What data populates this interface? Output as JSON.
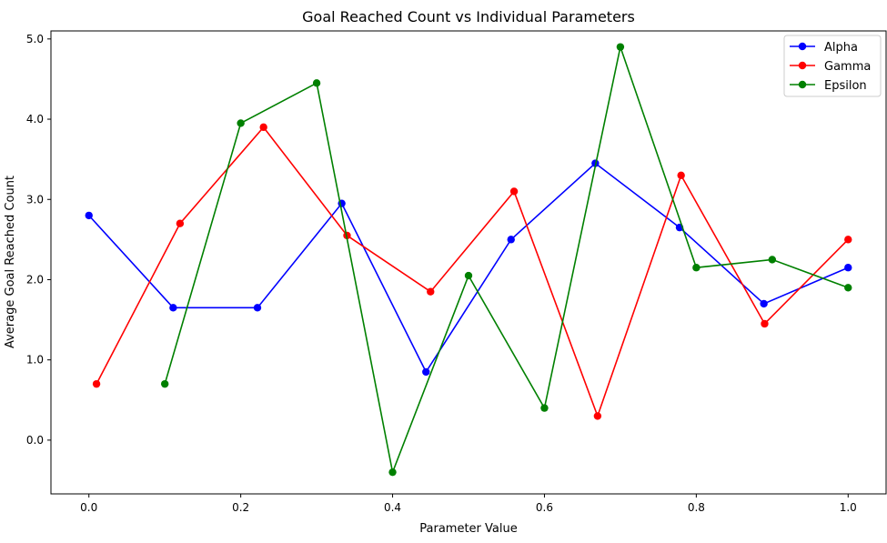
{
  "chart_data": {
    "type": "line",
    "title": "Goal Reached Count vs Individual Parameters",
    "xlabel": "Parameter Value",
    "ylabel": "Average Goal Reached Count",
    "xlim": [
      -0.05,
      1.05
    ],
    "ylim": [
      -0.67,
      5.1
    ],
    "xticks": [
      0.0,
      0.2,
      0.4,
      0.6,
      0.8,
      1.0
    ],
    "xtick_labels": [
      "0.0",
      "0.2",
      "0.4",
      "0.6",
      "0.8",
      "1.0"
    ],
    "yticks": [
      0.0,
      1.0,
      2.0,
      3.0,
      4.0,
      5.0
    ],
    "ytick_labels": [
      "0.0",
      "1.0",
      "2.0",
      "3.0",
      "4.0",
      "5.0"
    ],
    "grid": false,
    "legend_position": "top-right",
    "series": [
      {
        "name": "Alpha",
        "color": "#0000ff",
        "x": [
          0.0,
          0.111,
          0.222,
          0.333,
          0.444,
          0.556,
          0.667,
          0.778,
          0.889,
          1.0
        ],
        "y": [
          2.8,
          1.65,
          1.65,
          2.95,
          0.85,
          2.5,
          3.45,
          2.65,
          1.7,
          2.15
        ]
      },
      {
        "name": "Gamma",
        "color": "#ff0000",
        "x": [
          0.01,
          0.12,
          0.23,
          0.34,
          0.45,
          0.56,
          0.67,
          0.78,
          0.89,
          1.0
        ],
        "y": [
          0.7,
          2.7,
          3.9,
          2.55,
          1.85,
          3.1,
          0.3,
          3.3,
          1.45,
          2.5
        ]
      },
      {
        "name": "Epsilon",
        "color": "#008000",
        "x": [
          0.1,
          0.2,
          0.3,
          0.4,
          0.5,
          0.6,
          0.7,
          0.8,
          0.9,
          1.0
        ],
        "y": [
          0.7,
          3.95,
          4.45,
          -0.4,
          2.05,
          0.4,
          4.9,
          2.15,
          2.25,
          1.9
        ]
      }
    ]
  }
}
